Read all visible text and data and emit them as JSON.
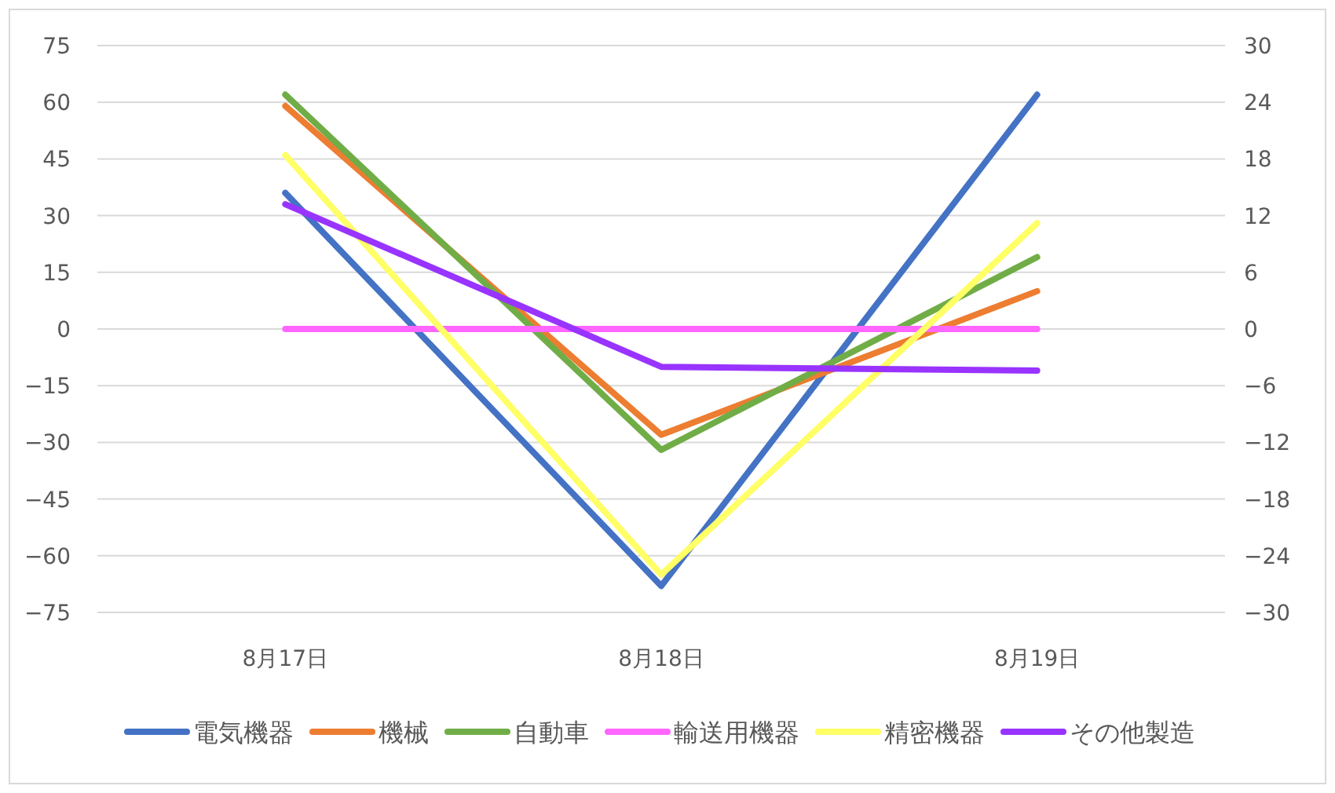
{
  "chart_data": {
    "type": "line",
    "categories": [
      "8月17日",
      "8月18日",
      "8月19日"
    ],
    "series": [
      {
        "name": "電気機器",
        "color": "#4472c4",
        "values": [
          36,
          -68,
          62
        ]
      },
      {
        "name": "機械",
        "color": "#ed7d31",
        "values": [
          59,
          -28,
          10
        ]
      },
      {
        "name": "自動車",
        "color": "#70ad47",
        "values": [
          62,
          -32,
          19
        ]
      },
      {
        "name": "輸送用機器",
        "color": "#ff66ff",
        "values": [
          0,
          0,
          0
        ]
      },
      {
        "name": "精密機器",
        "color": "#ffff66",
        "values": [
          46,
          -65,
          28
        ]
      },
      {
        "name": "その他製造",
        "color": "#9933ff",
        "values": [
          33,
          -10,
          -11
        ]
      }
    ],
    "ylim": [
      -75,
      75
    ],
    "yticks": [
      -75,
      -60,
      -45,
      -30,
      -15,
      0,
      15,
      30,
      45,
      60,
      75
    ],
    "y2lim": [
      -30,
      30
    ],
    "y2ticks": [
      -30,
      -24,
      -18,
      -12,
      -6,
      0,
      6,
      12,
      18,
      24,
      30
    ],
    "grid": "y",
    "legend": "bottom",
    "marker": "none",
    "line_style": "solid"
  }
}
